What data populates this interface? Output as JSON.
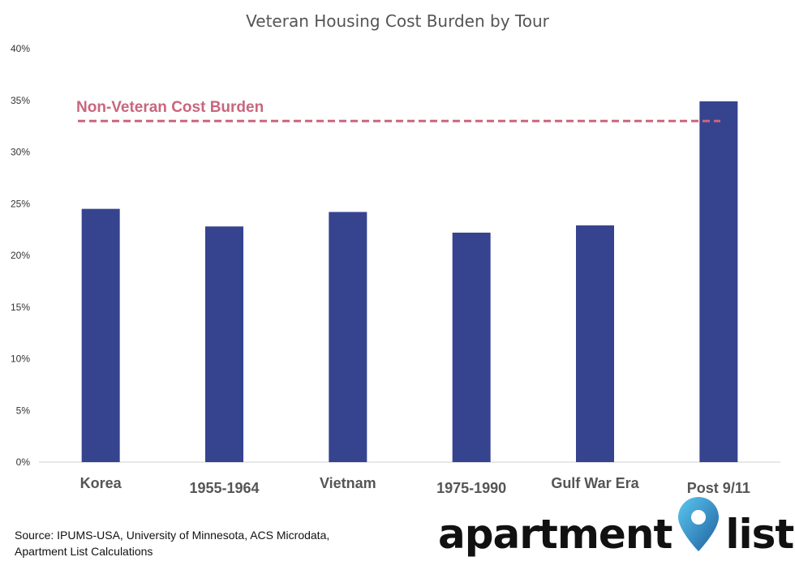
{
  "chart_data": {
    "type": "bar",
    "title": "Veteran Housing Cost Burden by Tour",
    "categories": [
      "Korea",
      "1955-1964",
      "Vietnam",
      "1975-1990",
      "Gulf War Era",
      "Post 9/11"
    ],
    "values": [
      24.5,
      22.8,
      24.2,
      22.2,
      22.9,
      34.9
    ],
    "ylim": [
      0,
      40
    ],
    "yticks": [
      0,
      5,
      10,
      15,
      20,
      25,
      30,
      35,
      40
    ],
    "ytick_labels": [
      "0%",
      "5%",
      "10%",
      "15%",
      "20%",
      "25%",
      "30%",
      "35%",
      "40%"
    ],
    "xlabel": "",
    "ylabel": "",
    "grid": false,
    "bar_color": "#36438f",
    "reference_line": {
      "label": "Non-Veteran Cost Burden",
      "value": 33,
      "color": "#c9667e",
      "style": "dashed"
    }
  },
  "footer": {
    "source_line1": "Source: IPUMS-USA, University of Minnesota, ACS Microdata,",
    "source_line2": "Apartment List Calculations"
  },
  "logo": {
    "text_part1": "apartment",
    "text_part2": "list",
    "pin_color_light": "#5bc8f0",
    "pin_color_dark": "#1f5f9e"
  }
}
